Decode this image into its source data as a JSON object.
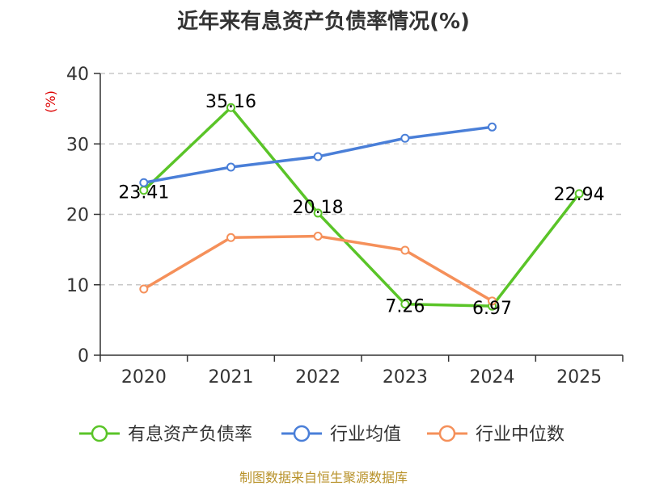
{
  "chart_data": {
    "type": "line",
    "title": "近年来有息资产负债率情况(%)",
    "ylabel": "(%)",
    "ylim": [
      0,
      40
    ],
    "yticks": [
      0,
      10,
      20,
      30,
      40
    ],
    "categories": [
      "2020",
      "2021",
      "2022",
      "2023",
      "2024",
      "2025"
    ],
    "series": [
      {
        "name": "有息资产负债率",
        "color": "#5ac428",
        "values": [
          23.41,
          35.16,
          20.18,
          7.26,
          6.97,
          22.94
        ],
        "data_labels": [
          "23.41",
          "35.16",
          "20.18",
          "7.26",
          "6.97",
          "22.94"
        ]
      },
      {
        "name": "行业均值",
        "color": "#4a7fd8",
        "values": [
          24.5,
          26.7,
          28.2,
          30.8,
          32.4,
          null
        ]
      },
      {
        "name": "行业中位数",
        "color": "#f5905a",
        "values": [
          9.4,
          16.7,
          16.9,
          14.9,
          7.7,
          null
        ]
      }
    ],
    "grid": true,
    "legend_position": "bottom"
  },
  "source": "制图数据来自恒生聚源数据库"
}
